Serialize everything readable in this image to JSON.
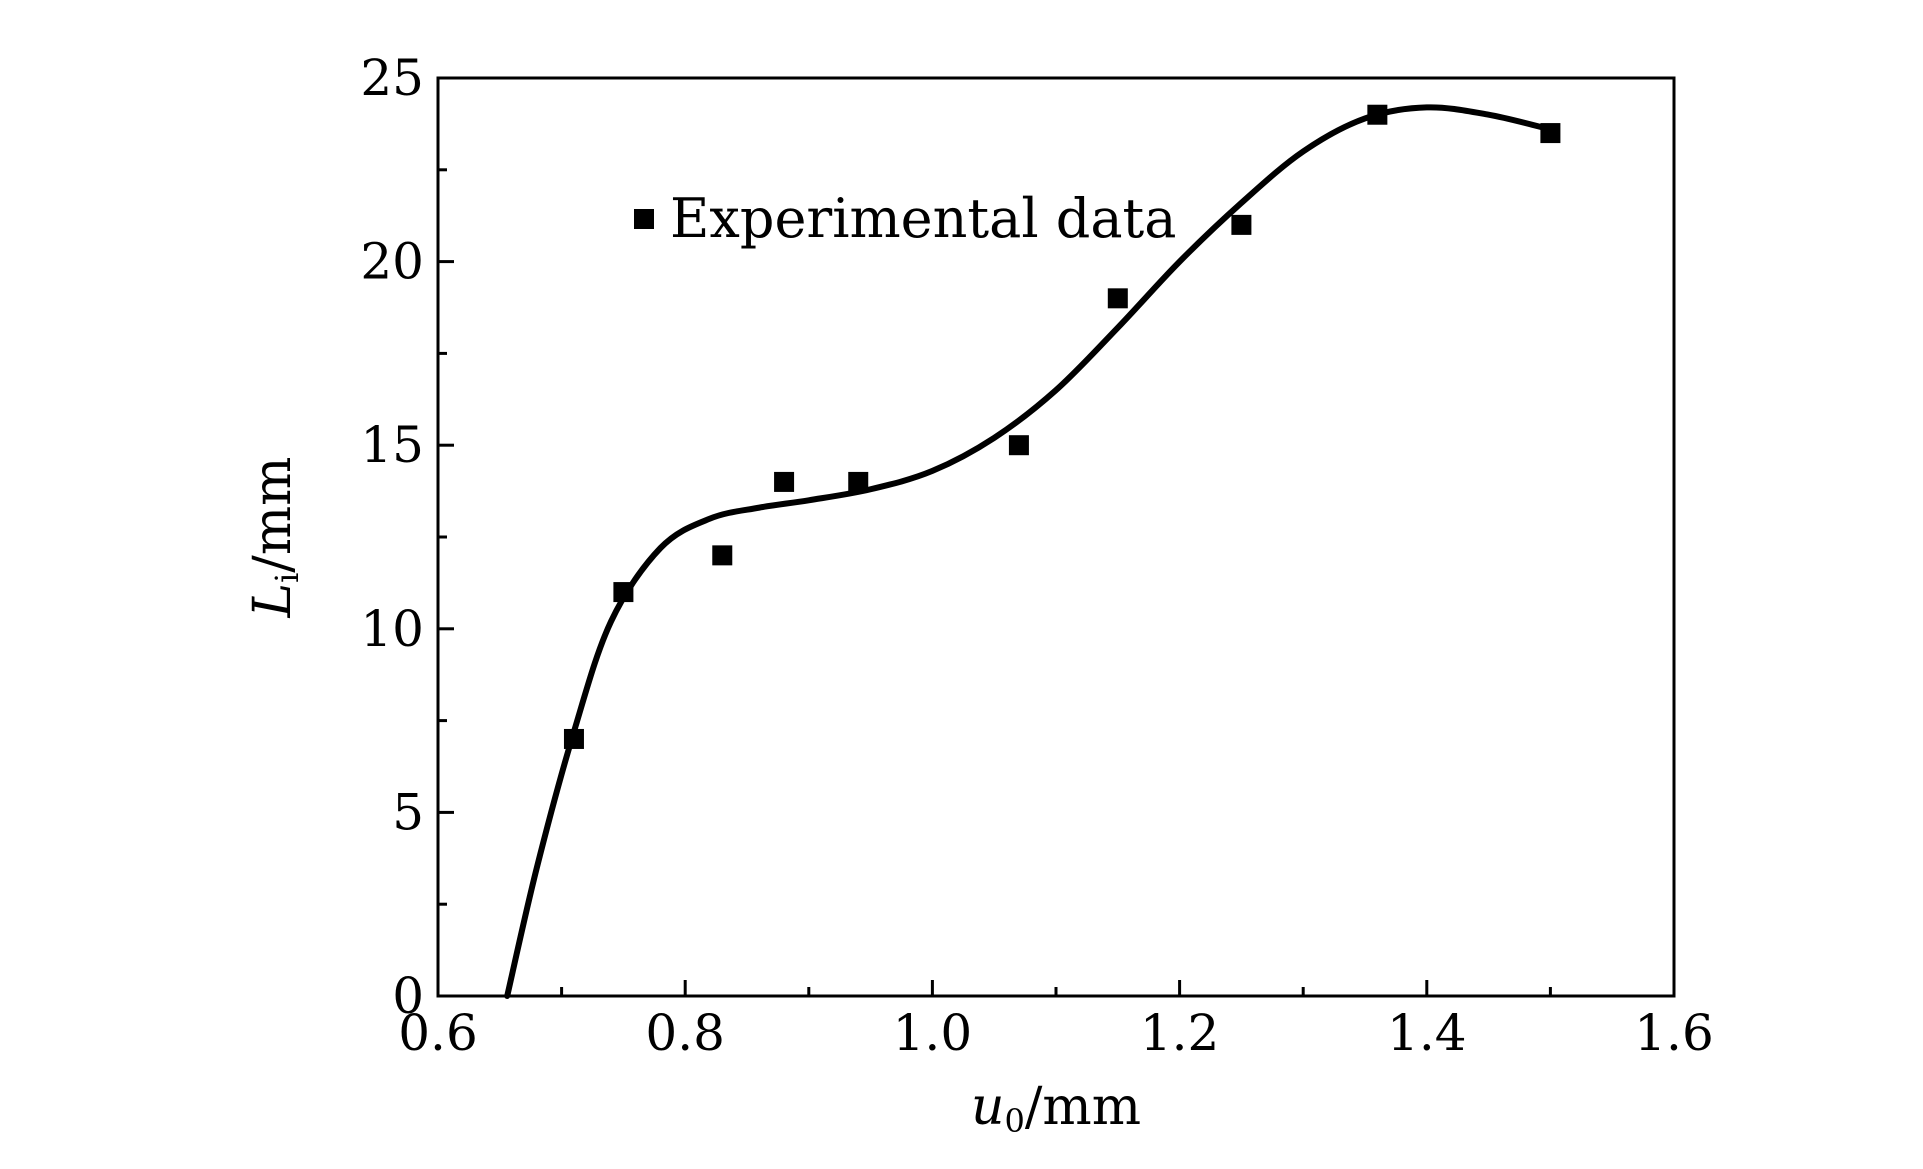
{
  "chart_data": {
    "type": "scatter",
    "x_axis": {
      "label_var": "u",
      "label_sub": "0",
      "label_unit": "/mm",
      "range": [
        0.6,
        1.6
      ],
      "major_ticks": [
        0.6,
        0.8,
        1.0,
        1.2,
        1.4,
        1.6
      ],
      "tick_labels": [
        "0.6",
        "0.8",
        "1.0",
        "1.2",
        "1.4",
        "1.6"
      ],
      "minor_ticks": [
        0.7,
        0.9,
        1.1,
        1.3,
        1.5
      ]
    },
    "y_axis": {
      "label_var": "L",
      "label_sub": "i",
      "label_unit": "/mm",
      "range": [
        0,
        25
      ],
      "major_ticks": [
        0,
        5,
        10,
        15,
        20,
        25
      ],
      "tick_labels": [
        "0",
        "5",
        "10",
        "15",
        "20",
        "25"
      ],
      "minor_ticks": [
        2.5,
        7.5,
        12.5,
        17.5,
        22.5
      ]
    },
    "grid": false,
    "legend": {
      "placement": "top-left",
      "entries": [
        "Experimental data"
      ]
    },
    "series": [
      {
        "name": "Experimental data",
        "kind": "scatter",
        "marker": "square",
        "color": "#000000",
        "points": [
          {
            "x": 0.71,
            "y": 7.0
          },
          {
            "x": 0.75,
            "y": 11.0
          },
          {
            "x": 0.83,
            "y": 12.0
          },
          {
            "x": 0.88,
            "y": 14.0
          },
          {
            "x": 0.94,
            "y": 14.0
          },
          {
            "x": 1.07,
            "y": 15.0
          },
          {
            "x": 1.15,
            "y": 19.0
          },
          {
            "x": 1.25,
            "y": 21.0
          },
          {
            "x": 1.36,
            "y": 24.0
          },
          {
            "x": 1.5,
            "y": 23.5
          }
        ]
      },
      {
        "kind": "line",
        "color": "#000000",
        "points": [
          {
            "x": 0.656,
            "y": 0.0
          },
          {
            "x": 0.68,
            "y": 3.5
          },
          {
            "x": 0.71,
            "y": 7.2
          },
          {
            "x": 0.74,
            "y": 10.2
          },
          {
            "x": 0.78,
            "y": 12.2
          },
          {
            "x": 0.82,
            "y": 13.0
          },
          {
            "x": 0.86,
            "y": 13.3
          },
          {
            "x": 0.9,
            "y": 13.5
          },
          {
            "x": 0.95,
            "y": 13.8
          },
          {
            "x": 1.0,
            "y": 14.3
          },
          {
            "x": 1.05,
            "y": 15.2
          },
          {
            "x": 1.1,
            "y": 16.5
          },
          {
            "x": 1.15,
            "y": 18.2
          },
          {
            "x": 1.2,
            "y": 20.0
          },
          {
            "x": 1.25,
            "y": 21.6
          },
          {
            "x": 1.3,
            "y": 23.0
          },
          {
            "x": 1.35,
            "y": 23.9
          },
          {
            "x": 1.4,
            "y": 24.2
          },
          {
            "x": 1.45,
            "y": 24.0
          },
          {
            "x": 1.5,
            "y": 23.6
          }
        ]
      }
    ]
  }
}
